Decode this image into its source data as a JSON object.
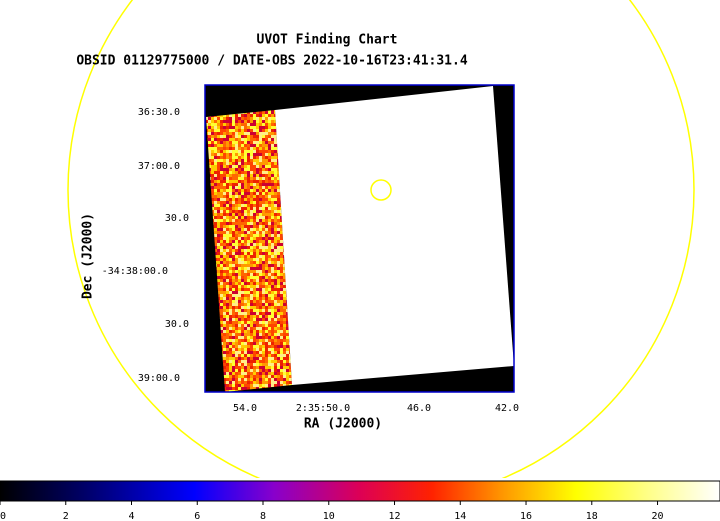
{
  "title": "UVOT Finding Chart",
  "subtitle": "OBSID 01129775000 / DATE-OBS 2022-10-16T23:41:31.4",
  "x_axis": {
    "label": "RA (J2000)",
    "tick_labels": [
      "54.0",
      "2:35:50.0",
      "46.0",
      "42.0"
    ]
  },
  "y_axis": {
    "label": "Dec (J2000)",
    "tick_labels": [
      "36:30.0",
      "37:00.0",
      "30.0",
      "-34:38:00.0",
      "30.0",
      "39:00.0"
    ]
  },
  "colorbar": {
    "lim": [
      0,
      21.9
    ],
    "ticks": [
      0,
      2,
      4,
      6,
      8,
      10,
      12,
      14,
      16,
      18,
      20
    ]
  }
}
